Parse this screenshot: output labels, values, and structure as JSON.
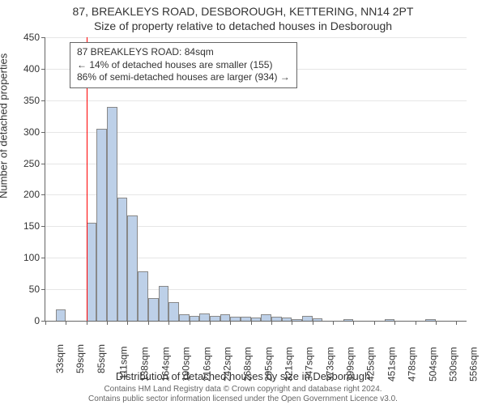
{
  "title_line1": "87, BREAKLEYS ROAD, DESBOROUGH, KETTERING, NN14 2PT",
  "title_line2": "Size of property relative to detached houses in Desborough",
  "y_axis_label": "Number of detached properties",
  "x_axis_label": "Distribution of detached houses by size in Desborough",
  "footer_line1": "Contains HM Land Registry data © Crown copyright and database right 2024.",
  "footer_line2": "Contains public sector information licensed under the Open Government Licence v3.0.",
  "chart": {
    "type": "histogram",
    "ylim": [
      0,
      450
    ],
    "ytick_step": 50,
    "y_ticks": [
      0,
      50,
      100,
      150,
      200,
      250,
      300,
      350,
      400,
      450
    ],
    "x_tick_labels": [
      "33sqm",
      "59sqm",
      "85sqm",
      "111sqm",
      "138sqm",
      "164sqm",
      "190sqm",
      "216sqm",
      "242sqm",
      "268sqm",
      "295sqm",
      "321sqm",
      "347sqm",
      "373sqm",
      "399sqm",
      "425sqm",
      "451sqm",
      "478sqm",
      "504sqm",
      "530sqm",
      "556sqm"
    ],
    "x_tick_every": 2,
    "bar_values": [
      0,
      18,
      0,
      0,
      155,
      305,
      340,
      195,
      167,
      78,
      36,
      55,
      30,
      10,
      8,
      12,
      8,
      10,
      7,
      6,
      5,
      10,
      6,
      5,
      3,
      8,
      4,
      0,
      0,
      3,
      0,
      0,
      0,
      3,
      0,
      0,
      0,
      3,
      0,
      0,
      0
    ],
    "bar_color": "#bdd0e8",
    "bar_border_color": "#888888",
    "grid_color": "#e6e6e6",
    "background_color": "#ffffff",
    "bar_width_ratio": 1.0,
    "ref_line_index": 4,
    "ref_line_color": "#ff0000",
    "title_fontsize": 14,
    "label_fontsize": 13,
    "tick_fontsize": 12
  },
  "annotation": {
    "line1": "87 BREAKLEYS ROAD: 84sqm",
    "line2": "← 14% of detached houses are smaller (155)",
    "line3": "86% of semi-detached houses are larger (934) →"
  }
}
